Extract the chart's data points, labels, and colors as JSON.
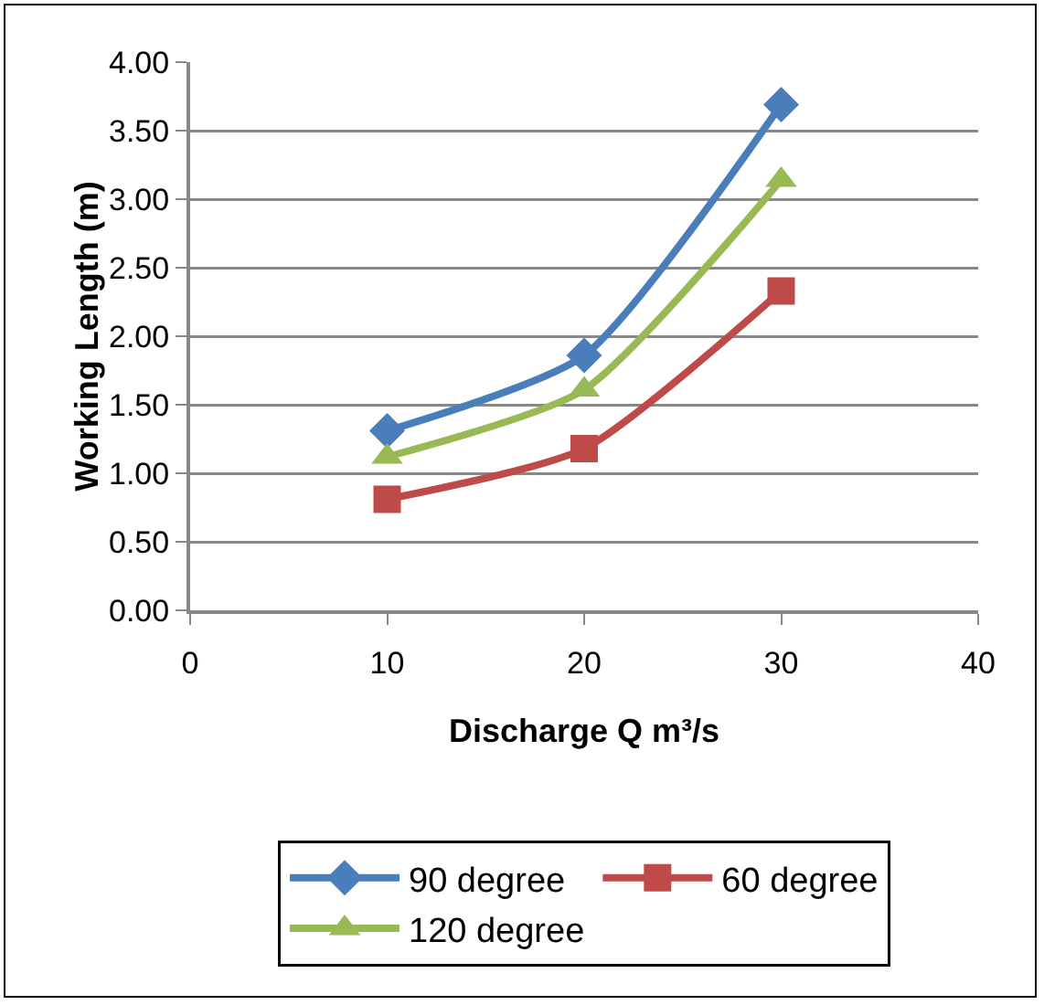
{
  "chart_data": {
    "type": "line",
    "xlabel": "Discharge Q m³/s",
    "ylabel": "Working Length (m)",
    "x": [
      10,
      20,
      30
    ],
    "series": [
      {
        "name": "90 degree",
        "color": "#4a7ebb",
        "marker": "diamond",
        "values": [
          1.31,
          1.86,
          3.69
        ]
      },
      {
        "name": "60 degree",
        "color": "#be4b48",
        "marker": "square",
        "values": [
          0.81,
          1.18,
          2.33
        ]
      },
      {
        "name": "120 degree",
        "color": "#98b954",
        "marker": "triangle",
        "values": [
          1.12,
          1.61,
          3.14
        ]
      }
    ],
    "xlim": [
      0,
      40
    ],
    "xticks": [
      0,
      10,
      20,
      30,
      40
    ],
    "ylim": [
      0,
      4
    ],
    "yticks": [
      {
        "value": 0,
        "label": "0.00"
      },
      {
        "value": 0.5,
        "label": "0.50"
      },
      {
        "value": 1,
        "label": "1.00"
      },
      {
        "value": 1.5,
        "label": "1.50"
      },
      {
        "value": 2,
        "label": "2.00"
      },
      {
        "value": 2.5,
        "label": "2.50"
      },
      {
        "value": 3,
        "label": "3.00"
      },
      {
        "value": 3.5,
        "label": "3.50"
      },
      {
        "value": 4,
        "label": "4.00"
      }
    ],
    "grid": "y",
    "legend": "bottom",
    "line_style": "solid"
  }
}
